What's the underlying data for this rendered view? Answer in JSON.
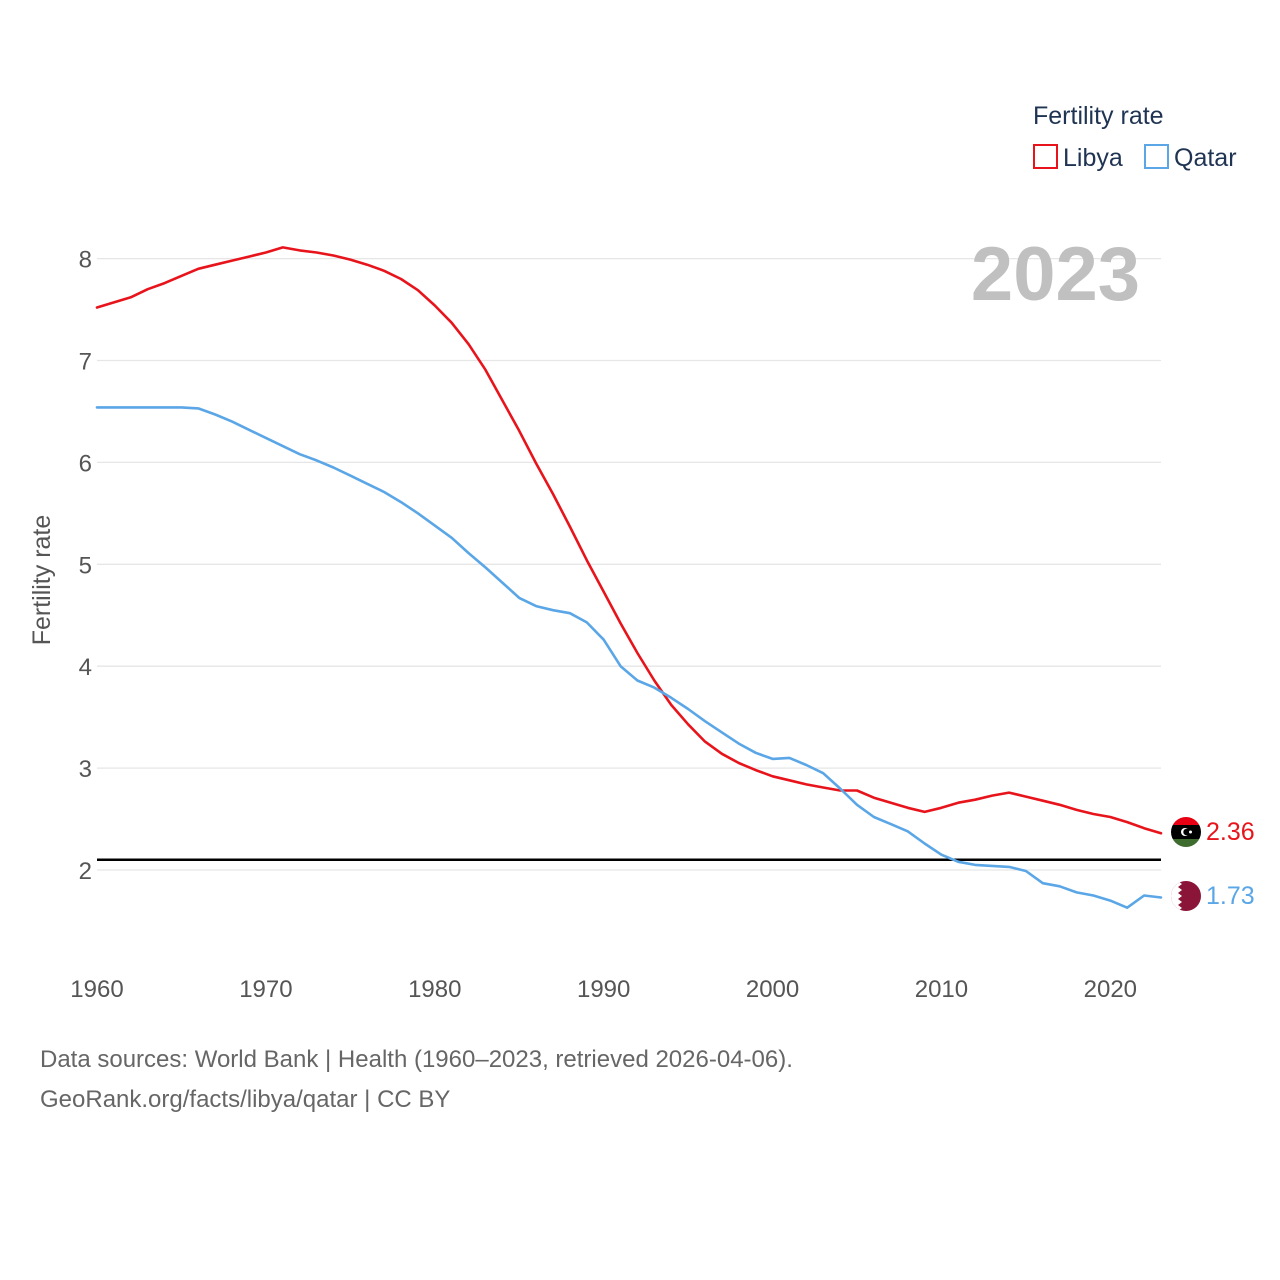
{
  "chart_data": {
    "type": "line",
    "ylabel": "Fertility rate",
    "year_overlay": "2023",
    "legend": {
      "title": "Fertility rate",
      "placement": "top-right",
      "entries": [
        "Libya",
        "Qatar"
      ]
    },
    "x_ticks": [
      1960,
      1970,
      1980,
      1990,
      2000,
      2010,
      2020
    ],
    "y_ticks": [
      2,
      3,
      4,
      5,
      6,
      7,
      8
    ],
    "xlim": [
      1960,
      2023
    ],
    "ylim": [
      1.1,
      8.35
    ],
    "reference_line": 2.1,
    "x": [
      1960,
      1961,
      1962,
      1963,
      1964,
      1965,
      1966,
      1967,
      1968,
      1969,
      1970,
      1971,
      1972,
      1973,
      1974,
      1975,
      1976,
      1977,
      1978,
      1979,
      1980,
      1981,
      1982,
      1983,
      1984,
      1985,
      1986,
      1987,
      1988,
      1989,
      1990,
      1991,
      1992,
      1993,
      1994,
      1995,
      1996,
      1997,
      1998,
      1999,
      2000,
      2001,
      2002,
      2003,
      2004,
      2005,
      2006,
      2007,
      2008,
      2009,
      2010,
      2011,
      2012,
      2013,
      2014,
      2015,
      2016,
      2017,
      2018,
      2019,
      2020,
      2021,
      2022,
      2023
    ],
    "series": [
      {
        "name": "Libya",
        "color": "#e8141c",
        "end_label": "2.36",
        "values": [
          7.52,
          7.57,
          7.62,
          7.7,
          7.76,
          7.83,
          7.9,
          7.94,
          7.98,
          8.02,
          8.06,
          8.11,
          8.08,
          8.06,
          8.03,
          7.99,
          7.94,
          7.88,
          7.8,
          7.69,
          7.54,
          7.37,
          7.16,
          6.91,
          6.61,
          6.31,
          5.99,
          5.69,
          5.37,
          5.04,
          4.73,
          4.42,
          4.13,
          3.86,
          3.62,
          3.43,
          3.26,
          3.14,
          3.05,
          2.98,
          2.92,
          2.88,
          2.84,
          2.81,
          2.78,
          2.78,
          2.71,
          2.66,
          2.61,
          2.57,
          2.61,
          2.66,
          2.69,
          2.73,
          2.76,
          2.72,
          2.68,
          2.64,
          2.59,
          2.55,
          2.52,
          2.47,
          2.41,
          2.36
        ]
      },
      {
        "name": "Qatar",
        "color": "#5aa6e6",
        "end_label": "1.73",
        "values": [
          6.54,
          6.54,
          6.54,
          6.54,
          6.54,
          6.54,
          6.53,
          6.47,
          6.4,
          6.32,
          6.24,
          6.16,
          6.08,
          6.02,
          5.95,
          5.87,
          5.79,
          5.71,
          5.61,
          5.5,
          5.38,
          5.26,
          5.11,
          4.97,
          4.82,
          4.67,
          4.59,
          4.55,
          4.52,
          4.43,
          4.26,
          4.0,
          3.86,
          3.79,
          3.69,
          3.58,
          3.46,
          3.35,
          3.24,
          3.15,
          3.09,
          3.1,
          3.03,
          2.95,
          2.8,
          2.64,
          2.52,
          2.45,
          2.38,
          2.26,
          2.15,
          2.08,
          2.05,
          2.04,
          2.03,
          1.99,
          1.87,
          1.84,
          1.78,
          1.75,
          1.7,
          1.63,
          1.75,
          1.73
        ]
      }
    ]
  },
  "footer": {
    "line1": "Data sources: World Bank | Health (1960–2023, retrieved 2026-04-06).",
    "line2": "GeoRank.org/facts/libya/qatar | CC BY"
  }
}
